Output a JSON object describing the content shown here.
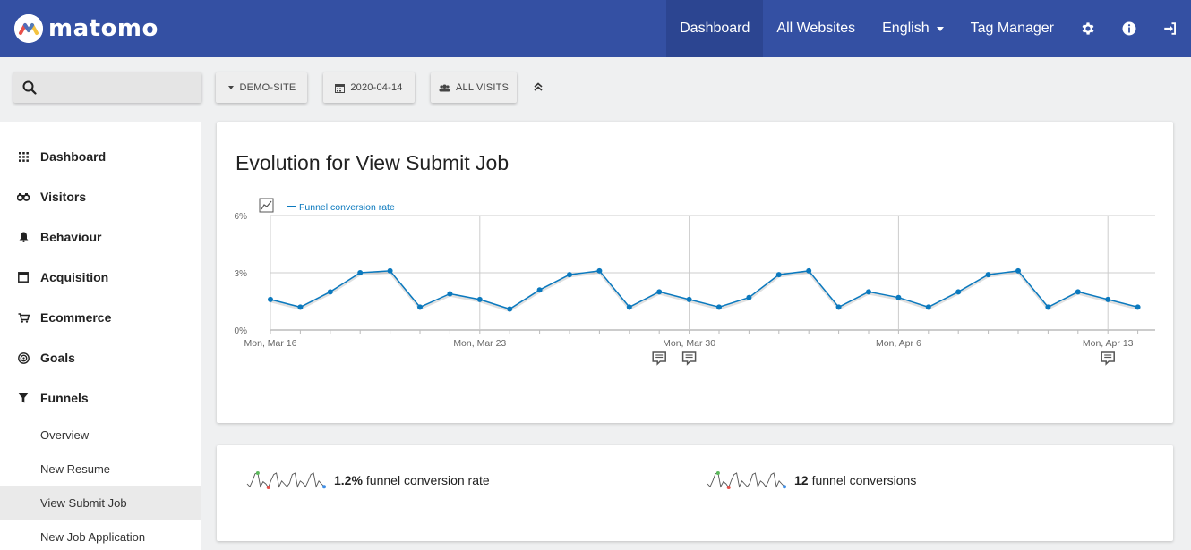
{
  "app": {
    "name": "matomo"
  },
  "topnav": {
    "items": [
      {
        "label": "Dashboard",
        "active": true
      },
      {
        "label": "All Websites"
      },
      {
        "label": "English"
      },
      {
        "label": "Tag Manager"
      }
    ],
    "icons": [
      "gear-icon",
      "info-icon",
      "sign-out-icon"
    ]
  },
  "controls": {
    "site": "DEMO-SITE",
    "date": "2020-04-14",
    "segment": "ALL VISITS"
  },
  "sidebar": {
    "items": [
      {
        "label": "Dashboard",
        "icon": "grid-icon"
      },
      {
        "label": "Visitors",
        "icon": "binoculars-icon"
      },
      {
        "label": "Behaviour",
        "icon": "bell-icon"
      },
      {
        "label": "Acquisition",
        "icon": "browser-icon"
      },
      {
        "label": "Ecommerce",
        "icon": "cart-icon"
      },
      {
        "label": "Goals",
        "icon": "target-icon"
      },
      {
        "label": "Funnels",
        "icon": "funnel-icon"
      }
    ],
    "subitems": [
      {
        "label": "Overview"
      },
      {
        "label": "New Resume"
      },
      {
        "label": "View Submit Job",
        "selected": true
      },
      {
        "label": "New Job Application"
      }
    ]
  },
  "evolution": {
    "title": "Evolution for View Submit Job"
  },
  "chart_data": {
    "type": "line",
    "legend": "Funnel conversion rate",
    "x_tick_labels": [
      "Mon, Mar 16",
      "Mon, Mar 23",
      "Mon, Mar 30",
      "Mon, Apr 6",
      "Mon, Apr 13"
    ],
    "y_tick_labels": [
      "0%",
      "3%",
      "6%"
    ],
    "ylim": [
      0,
      6
    ],
    "x": [
      "2020-03-16",
      "2020-03-17",
      "2020-03-18",
      "2020-03-19",
      "2020-03-20",
      "2020-03-21",
      "2020-03-22",
      "2020-03-23",
      "2020-03-24",
      "2020-03-25",
      "2020-03-26",
      "2020-03-27",
      "2020-03-28",
      "2020-03-29",
      "2020-03-30",
      "2020-03-31",
      "2020-04-01",
      "2020-04-02",
      "2020-04-03",
      "2020-04-04",
      "2020-04-05",
      "2020-04-06",
      "2020-04-07",
      "2020-04-08",
      "2020-04-09",
      "2020-04-10",
      "2020-04-11",
      "2020-04-12",
      "2020-04-13",
      "2020-04-14"
    ],
    "series": [
      {
        "name": "Funnel conversion rate",
        "values": [
          1.6,
          1.2,
          2.0,
          3.0,
          3.1,
          1.2,
          1.9,
          1.6,
          1.1,
          2.1,
          2.9,
          3.1,
          1.2,
          2.0,
          1.6,
          1.2,
          1.7,
          2.9,
          3.1,
          1.2,
          2.0,
          1.7,
          1.2,
          2.0,
          2.9,
          3.1,
          1.2,
          2.0,
          1.6,
          1.2
        ]
      }
    ],
    "annotations_on": [
      "2020-03-29",
      "2020-03-30",
      "2020-04-13"
    ],
    "grid": true,
    "legend_position": "top-left",
    "color": "#0b79be"
  },
  "sparklines": [
    {
      "value": "1.2%",
      "label": "funnel conversion rate"
    },
    {
      "value": "12",
      "label": "funnel conversions"
    }
  ]
}
